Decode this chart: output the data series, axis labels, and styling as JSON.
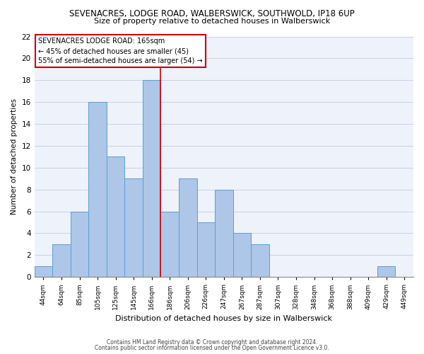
{
  "title_line1": "SEVENACRES, LODGE ROAD, WALBERSWICK, SOUTHWOLD, IP18 6UP",
  "title_line2": "Size of property relative to detached houses in Walberswick",
  "xlabel": "Distribution of detached houses by size in Walberswick",
  "ylabel": "Number of detached properties",
  "footnote1": "Contains HM Land Registry data © Crown copyright and database right 2024.",
  "footnote2": "Contains public sector information licensed under the Open Government Licence v3.0.",
  "bar_labels": [
    "44sqm",
    "64sqm",
    "85sqm",
    "105sqm",
    "125sqm",
    "145sqm",
    "166sqm",
    "186sqm",
    "206sqm",
    "226sqm",
    "247sqm",
    "267sqm",
    "287sqm",
    "307sqm",
    "328sqm",
    "348sqm",
    "368sqm",
    "388sqm",
    "409sqm",
    "429sqm",
    "449sqm"
  ],
  "bar_values": [
    1,
    3,
    6,
    16,
    11,
    9,
    18,
    6,
    9,
    5,
    8,
    4,
    3,
    0,
    0,
    0,
    0,
    0,
    0,
    1,
    0
  ],
  "bar_color": "#aec6e8",
  "bar_edge_color": "#5a9fd4",
  "reference_line_x": 6,
  "ylim": [
    0,
    22
  ],
  "yticks": [
    0,
    2,
    4,
    6,
    8,
    10,
    12,
    14,
    16,
    18,
    20,
    22
  ],
  "annotation_title": "SEVENACRES LODGE ROAD: 165sqm",
  "annotation_line1": "← 45% of detached houses are smaller (45)",
  "annotation_line2": "55% of semi-detached houses are larger (54) →",
  "annotation_box_color": "#ffffff",
  "annotation_box_edge_color": "#cc0000",
  "ref_line_color": "#cc0000",
  "background_color": "#eef2fb"
}
